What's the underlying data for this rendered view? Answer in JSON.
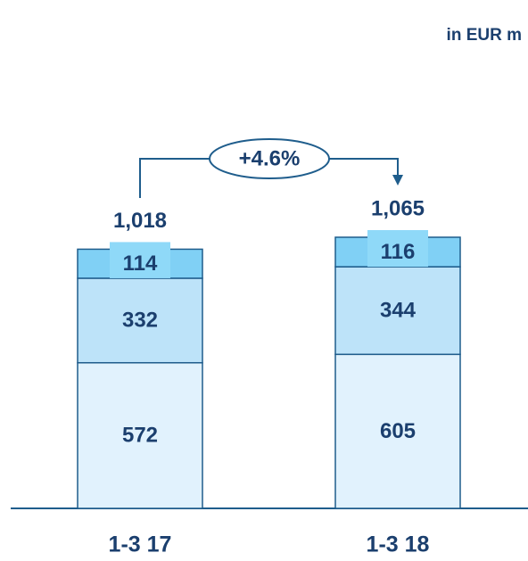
{
  "chart_data": {
    "type": "stacked_bar",
    "unit_label": "in EUR m",
    "categories": [
      "1-3 17",
      "1-3 18"
    ],
    "series": [
      {
        "color": "#e1f2fd",
        "values": [
          572,
          605
        ]
      },
      {
        "color": "#bde3f9",
        "values": [
          332,
          344
        ]
      },
      {
        "color": "#80d0f5",
        "values": [
          114,
          116
        ]
      }
    ],
    "totals": {
      "values": [
        1018,
        1065
      ],
      "value_labels": [
        "1,018",
        "1,065"
      ]
    },
    "annotation": "+4.6%"
  }
}
